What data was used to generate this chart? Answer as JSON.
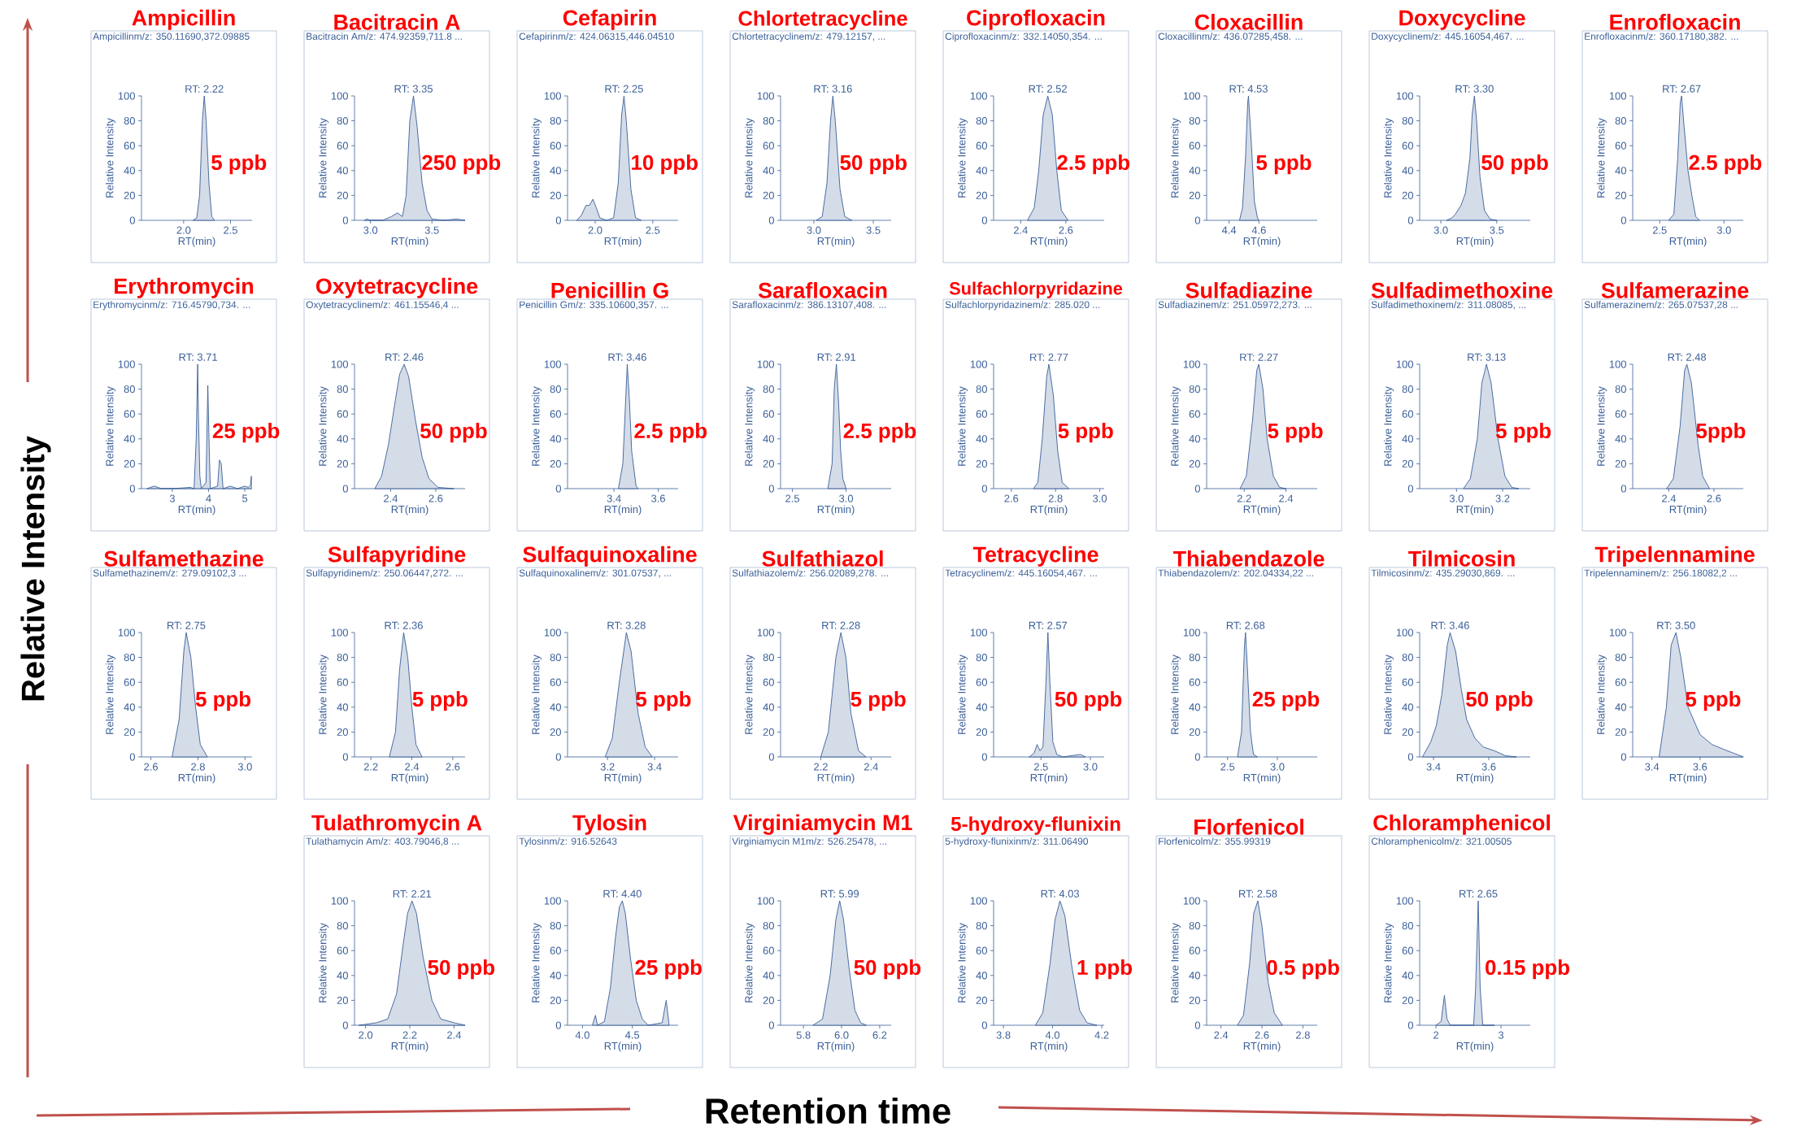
{
  "chart_data": [
    {
      "type": "area",
      "title": "Ampicillin",
      "subtitle": "Ampicillinm/z: 350.11690,372.09885",
      "xlabel": "RT(min)",
      "ylabel": "Relative Intensity",
      "color": "#3a5f98",
      "xlim": [
        1.55,
        2.73
      ],
      "xticks": [
        {
          "value": 2.0,
          "label": "2.0"
        },
        2.5
      ],
      "ylim": [
        0,
        100
      ],
      "yticks": [
        0,
        20,
        40,
        60,
        80,
        100
      ],
      "x": [
        2.1,
        2.14,
        2.17,
        2.2,
        2.22,
        2.24,
        2.27,
        2.3,
        2.33
      ],
      "values": [
        0,
        2,
        20,
        80,
        100,
        80,
        30,
        3,
        0
      ],
      "annotations": [
        {
          "text": "RT: 2.22",
          "x": 2.22,
          "y": 100
        },
        "5 ppb"
      ]
    },
    {
      "type": "area",
      "title": "Bacitracin A",
      "subtitle": "Bacitracin Am/z: 474.92359,711.8 ...",
      "xlabel": "RT(min)",
      "ylabel": "Relative Intensity",
      "color": "#3a5f98",
      "xlim": [
        2.87,
        3.77
      ],
      "xticks": [
        {
          "value": 3.0,
          "label": "3.0"
        },
        3.5
      ],
      "ylim": [
        0,
        100
      ],
      "yticks": [
        0,
        20,
        40,
        60,
        80,
        100
      ],
      "x": [
        2.95,
        2.97,
        3.0,
        3.1,
        3.17,
        3.22,
        3.26,
        3.29,
        3.32,
        3.35,
        3.38,
        3.42,
        3.46,
        3.5,
        3.6,
        3.7,
        3.77
      ],
      "values": [
        0,
        1,
        0,
        0,
        3,
        6,
        3,
        20,
        80,
        100,
        75,
        30,
        8,
        1,
        0,
        1,
        0
      ],
      "annotations": [
        {
          "text": "RT: 3.35",
          "x": 3.35,
          "y": 100
        },
        "250 ppb"
      ]
    },
    {
      "type": "area",
      "title": "Cefapirin",
      "subtitle": "Cefapirinm/z: 424.06315,446.04510",
      "xlabel": "RT(min)",
      "ylabel": "Relative Intensity",
      "color": "#3a5f98",
      "xlim": [
        1.76,
        2.72
      ],
      "xticks": [
        {
          "value": 2.0,
          "label": "2.0"
        },
        2.5
      ],
      "ylim": [
        0,
        100
      ],
      "yticks": [
        0,
        20,
        40,
        60,
        80,
        100
      ],
      "x": [
        1.84,
        1.88,
        1.92,
        1.95,
        1.98,
        2.01,
        2.04,
        2.1,
        2.16,
        2.2,
        2.23,
        2.25,
        2.27,
        2.31,
        2.35,
        2.4
      ],
      "values": [
        0,
        4,
        12,
        12,
        17,
        10,
        2,
        0,
        2,
        30,
        85,
        100,
        80,
        25,
        2,
        0
      ],
      "annotations": [
        {
          "text": "RT: 2.25",
          "x": 2.25,
          "y": 100
        },
        "10 ppb"
      ]
    },
    {
      "type": "area",
      "title": "Chlortetracycline",
      "subtitle": "Chlortetracyclinem/z: 479.12157, ...",
      "xlabel": "RT(min)",
      "ylabel": "Relative Intensity",
      "color": "#3a5f98",
      "xlim": [
        2.72,
        3.65
      ],
      "xticks": [
        {
          "value": 3.0,
          "label": "3.0"
        },
        3.5
      ],
      "ylim": [
        0,
        100
      ],
      "yticks": [
        0,
        20,
        40,
        60,
        80,
        100
      ],
      "x": [
        3.02,
        3.07,
        3.11,
        3.14,
        3.16,
        3.18,
        3.22,
        3.26,
        3.32
      ],
      "values": [
        0,
        3,
        30,
        80,
        100,
        80,
        25,
        3,
        0
      ],
      "annotations": [
        {
          "text": "RT: 3.16",
          "x": 3.16,
          "y": 100
        },
        "50 ppb"
      ]
    },
    {
      "type": "area",
      "title": "Ciprofloxacin",
      "subtitle": "Ciprofloxacinm/z: 332.14050,354. ...",
      "xlabel": "RT(min)",
      "ylabel": "Relative Intensity",
      "color": "#3a5f98",
      "xlim": [
        2.28,
        2.77
      ],
      "xticks": [
        2.4,
        2.6
      ],
      "ylim": [
        0,
        100
      ],
      "yticks": [
        0,
        20,
        40,
        60,
        80,
        100
      ],
      "x": [
        2.43,
        2.46,
        2.48,
        2.5,
        2.52,
        2.54,
        2.56,
        2.58,
        2.61
      ],
      "values": [
        0,
        10,
        40,
        85,
        100,
        85,
        40,
        8,
        0
      ],
      "annotations": [
        {
          "text": "RT: 2.52",
          "x": 2.52,
          "y": 100
        },
        "2.5 ppb"
      ]
    },
    {
      "type": "area",
      "title": "Cloxacillin",
      "subtitle": "Cloxacillinm/z: 436.07285,458. ...",
      "xlabel": "RT(min)",
      "ylabel": "Relative Intensity",
      "color": "#3a5f98",
      "xlim": [
        4.25,
        4.99
      ],
      "xticks": [
        4.4,
        4.6
      ],
      "ylim": [
        0,
        100
      ],
      "yticks": [
        0,
        20,
        40,
        60,
        80,
        100
      ],
      "x": [
        4.47,
        4.49,
        4.51,
        4.525,
        4.53,
        4.55,
        4.57,
        4.59,
        4.6
      ],
      "values": [
        0,
        10,
        50,
        95,
        100,
        60,
        15,
        2,
        0
      ],
      "annotations": [
        {
          "text": "RT: 4.53",
          "x": 4.53,
          "y": 100
        },
        "5 ppb"
      ]
    },
    {
      "type": "area",
      "title": "Doxycycline",
      "subtitle": "Doxycyclinem/z: 445.16054,467. ...",
      "xlabel": "RT(min)",
      "ylabel": "Relative Intensity",
      "color": "#3a5f98",
      "xlim": [
        2.81,
        3.8
      ],
      "xticks": [
        {
          "value": 3.0,
          "label": "3.0"
        },
        3.5
      ],
      "ylim": [
        0,
        100
      ],
      "yticks": [
        0,
        20,
        40,
        60,
        80,
        100
      ],
      "x": [
        3.05,
        3.1,
        3.13,
        3.18,
        3.22,
        3.26,
        3.28,
        3.3,
        3.32,
        3.35,
        3.39,
        3.44,
        3.5
      ],
      "values": [
        0,
        2,
        5,
        12,
        22,
        50,
        85,
        100,
        80,
        35,
        8,
        1,
        0
      ],
      "annotations": [
        {
          "text": "RT: 3.30",
          "x": 3.3,
          "y": 100
        },
        "50 ppb"
      ]
    },
    {
      "type": "area",
      "title": "Enrofloxacin",
      "subtitle": "Enrofloxacinm/z: 360.17180,382. ...",
      "xlabel": "RT(min)",
      "ylabel": "Relative Intensity",
      "color": "#3a5f98",
      "xlim": [
        2.29,
        3.15
      ],
      "xticks": [
        2.5,
        {
          "value": 3.0,
          "label": "3.0"
        }
      ],
      "ylim": [
        0,
        100
      ],
      "yticks": [
        0,
        20,
        40,
        60,
        80,
        100
      ],
      "x": [
        2.57,
        2.61,
        2.64,
        2.66,
        2.67,
        2.69,
        2.72,
        2.75,
        2.78,
        2.81
      ],
      "values": [
        0,
        5,
        50,
        95,
        100,
        75,
        40,
        20,
        3,
        0
      ],
      "annotations": [
        {
          "text": "RT: 2.67",
          "x": 2.67,
          "y": 100
        },
        "2.5 ppb"
      ]
    },
    {
      "type": "area",
      "title": "Erythromycin",
      "subtitle": "Erythromycinm/z: 716.45790,734. ...",
      "xlabel": "RT(min)",
      "ylabel": "Relative Intensity",
      "color": "#3a5f98",
      "xlim": [
        2.15,
        5.2
      ],
      "xticks": [
        3,
        4,
        5
      ],
      "ylim": [
        0,
        100
      ],
      "yticks": [
        0,
        20,
        40,
        60,
        80,
        100
      ],
      "x": [
        2.3,
        2.5,
        2.7,
        3.0,
        3.5,
        3.6,
        3.66,
        3.7,
        3.72,
        3.76,
        3.8,
        3.93,
        3.98,
        4.02,
        4.05,
        4.25,
        4.3,
        4.35,
        4.4,
        4.6,
        4.8,
        5.0,
        5.1,
        5.16,
        5.18
      ],
      "values": [
        0,
        2,
        0,
        0,
        1,
        0,
        40,
        100,
        60,
        10,
        0,
        5,
        83,
        30,
        0,
        2,
        23,
        20,
        0,
        2,
        0,
        2,
        1,
        3,
        10
      ],
      "annotations": [
        {
          "text": "RT: 3.71",
          "x": 3.71,
          "y": 100
        },
        "25 ppb"
      ]
    },
    {
      "type": "area",
      "title": "Oxytetracycline",
      "subtitle": "Oxytetracyclinem/z: 461.15546,4 ...",
      "xlabel": "RT(min)",
      "ylabel": "Relative Intensity",
      "color": "#3a5f98",
      "xlim": [
        2.24,
        2.73
      ],
      "xticks": [
        2.4,
        2.6
      ],
      "ylim": [
        0,
        100
      ],
      "yticks": [
        0,
        20,
        40,
        60,
        80,
        100
      ],
      "x": [
        2.33,
        2.36,
        2.39,
        2.42,
        2.44,
        2.46,
        2.48,
        2.51,
        2.54,
        2.57,
        2.61,
        2.68
      ],
      "values": [
        0,
        10,
        35,
        70,
        92,
        100,
        90,
        55,
        25,
        8,
        1,
        0
      ],
      "annotations": [
        {
          "text": "RT: 2.46",
          "x": 2.46,
          "y": 100
        },
        "50 ppb"
      ]
    },
    {
      "type": "area",
      "title": "Penicillin G",
      "subtitle": "Penicillin Gm/z: 335.10600,357. ...",
      "xlabel": "RT(min)",
      "ylabel": "Relative Intensity",
      "color": "#3a5f98",
      "xlim": [
        3.19,
        3.69
      ],
      "xticks": [
        3.4,
        3.6
      ],
      "ylim": [
        0,
        100
      ],
      "yticks": [
        0,
        20,
        40,
        60,
        80,
        100
      ],
      "x": [
        3.42,
        3.44,
        3.45,
        3.46,
        3.47,
        3.48,
        3.5,
        3.51
      ],
      "values": [
        0,
        20,
        60,
        100,
        70,
        30,
        2,
        0
      ],
      "annotations": [
        {
          "text": "RT: 3.46",
          "x": 3.46,
          "y": 100
        },
        "2.5 ppb"
      ]
    },
    {
      "type": "area",
      "title": "Sarafloxacin",
      "subtitle": "Sarafloxacinm/z: 386.13107,408. ...",
      "xlabel": "RT(min)",
      "ylabel": "Relative Intensity",
      "color": "#3a5f98",
      "xlim": [
        2.39,
        3.42
      ],
      "xticks": [
        2.5,
        {
          "value": 3.0,
          "label": "3.0"
        }
      ],
      "ylim": [
        0,
        100
      ],
      "yticks": [
        0,
        20,
        40,
        60,
        80,
        100
      ],
      "x": [
        2.83,
        2.87,
        2.89,
        2.91,
        2.93,
        2.95,
        2.97,
        3.0
      ],
      "values": [
        0,
        20,
        80,
        100,
        70,
        30,
        8,
        0
      ],
      "annotations": [
        {
          "text": "RT: 2.91",
          "x": 2.91,
          "y": 100
        },
        "2.5 ppb"
      ]
    },
    {
      "type": "area",
      "title": "Sulfachlorpyridazine",
      "subtitle": "Sulfachlorpyridazinem/z: 285.020 ...",
      "xlabel": "RT(min)",
      "ylabel": "Relative Intensity",
      "color": "#3a5f98",
      "xlim": [
        2.52,
        3.02
      ],
      "xticks": [
        2.6,
        2.8,
        {
          "value": 3.0,
          "label": "3.0"
        }
      ],
      "ylim": [
        0,
        100
      ],
      "yticks": [
        0,
        20,
        40,
        60,
        80,
        100
      ],
      "x": [
        2.7,
        2.72,
        2.74,
        2.76,
        2.77,
        2.79,
        2.81,
        2.83,
        2.86
      ],
      "values": [
        0,
        5,
        40,
        90,
        100,
        75,
        30,
        5,
        0
      ],
      "annotations": [
        {
          "text": "RT: 2.77",
          "x": 2.77,
          "y": 100
        },
        "5 ppb"
      ]
    },
    {
      "type": "area",
      "title": "Sulfadiazine",
      "subtitle": "Sulfadiazinem/z: 251.05972,273. ...",
      "xlabel": "RT(min)",
      "ylabel": "Relative Intensity",
      "color": "#3a5f98",
      "xlim": [
        2.02,
        2.55
      ],
      "xticks": [
        2.2,
        2.4
      ],
      "ylim": [
        0,
        100
      ],
      "yticks": [
        0,
        20,
        40,
        60,
        80,
        100
      ],
      "x": [
        2.18,
        2.21,
        2.24,
        2.26,
        2.27,
        2.29,
        2.31,
        2.34,
        2.37,
        2.4
      ],
      "values": [
        0,
        10,
        55,
        95,
        100,
        80,
        40,
        10,
        1,
        0
      ],
      "annotations": [
        {
          "text": "RT: 2.27",
          "x": 2.27,
          "y": 100
        },
        "5 ppb"
      ]
    },
    {
      "type": "area",
      "title": "Sulfadimethoxine",
      "subtitle": "Sulfadimethoxinem/z: 311.08085, ...",
      "xlabel": "RT(min)",
      "ylabel": "Relative Intensity",
      "color": "#3a5f98",
      "xlim": [
        2.84,
        3.32
      ],
      "xticks": [
        {
          "value": 3.0,
          "label": "3.0"
        },
        3.2
      ],
      "ylim": [
        0,
        100
      ],
      "yticks": [
        0,
        20,
        40,
        60,
        80,
        100
      ],
      "x": [
        3.03,
        3.06,
        3.09,
        3.11,
        3.13,
        3.15,
        3.18,
        3.21,
        3.24,
        3.27
      ],
      "values": [
        0,
        8,
        40,
        85,
        100,
        85,
        40,
        10,
        1,
        0
      ],
      "annotations": [
        {
          "text": "RT: 3.13",
          "x": 3.13,
          "y": 100
        },
        "5 ppb"
      ]
    },
    {
      "type": "area",
      "title": "Sulfamerazine",
      "subtitle": "Sulfamerazinem/z: 265.07537,28 ...",
      "xlabel": "RT(min)",
      "ylabel": "Relative Intensity",
      "color": "#3a5f98",
      "xlim": [
        2.24,
        2.73
      ],
      "xticks": [
        2.4,
        2.6
      ],
      "ylim": [
        0,
        100
      ],
      "yticks": [
        0,
        20,
        40,
        60,
        80,
        100
      ],
      "x": [
        2.39,
        2.42,
        2.45,
        2.47,
        2.48,
        2.5,
        2.53,
        2.55,
        2.58
      ],
      "values": [
        0,
        8,
        50,
        95,
        100,
        85,
        35,
        10,
        0
      ],
      "annotations": [
        {
          "text": "RT: 2.48",
          "x": 2.48,
          "y": 100
        },
        "5ppb"
      ]
    },
    {
      "type": "area",
      "title": "Sulfamethazine",
      "subtitle": "Sulfamethazinem/z: 279.09102,3 ...",
      "xlabel": "RT(min)",
      "ylabel": "Relative Intensity",
      "color": "#3a5f98",
      "xlim": [
        2.56,
        3.03
      ],
      "xticks": [
        2.6,
        2.8,
        {
          "value": 3.0,
          "label": "3.0"
        }
      ],
      "ylim": [
        0,
        100
      ],
      "yticks": [
        0,
        20,
        40,
        60,
        80,
        100
      ],
      "x": [
        2.69,
        2.72,
        2.74,
        2.75,
        2.77,
        2.79,
        2.81,
        2.84
      ],
      "values": [
        0,
        30,
        85,
        100,
        80,
        40,
        10,
        0
      ],
      "annotations": [
        {
          "text": "RT: 2.75",
          "x": 2.75,
          "y": 100
        },
        "5 ppb"
      ]
    },
    {
      "type": "area",
      "title": "Sulfapyridine",
      "subtitle": "Sulfapyridinem/z: 250.06447,272. ...",
      "xlabel": "RT(min)",
      "ylabel": "Relative Intensity",
      "color": "#3a5f98",
      "xlim": [
        2.12,
        2.66
      ],
      "xticks": [
        2.2,
        2.4,
        2.6
      ],
      "ylim": [
        0,
        100
      ],
      "yticks": [
        0,
        20,
        40,
        60,
        80,
        100
      ],
      "x": [
        2.29,
        2.32,
        2.34,
        2.36,
        2.38,
        2.4,
        2.42,
        2.45
      ],
      "values": [
        0,
        20,
        70,
        100,
        80,
        40,
        10,
        0
      ],
      "annotations": [
        {
          "text": "RT: 2.36",
          "x": 2.36,
          "y": 100
        },
        "5 ppb"
      ]
    },
    {
      "type": "area",
      "title": "Sulfaquinoxaline",
      "subtitle": "Sulfaquinoxalinem/z: 301.07537, ...",
      "xlabel": "RT(min)",
      "ylabel": "Relative Intensity",
      "color": "#3a5f98",
      "xlim": [
        3.03,
        3.5
      ],
      "xticks": [
        3.2,
        3.4
      ],
      "ylim": [
        0,
        100
      ],
      "yticks": [
        0,
        20,
        40,
        60,
        80,
        100
      ],
      "x": [
        3.19,
        3.22,
        3.25,
        3.28,
        3.3,
        3.33,
        3.36,
        3.39
      ],
      "values": [
        0,
        15,
        60,
        100,
        85,
        35,
        8,
        0
      ],
      "annotations": [
        {
          "text": "RT: 3.28",
          "x": 3.28,
          "y": 100
        },
        "5 ppb"
      ]
    },
    {
      "type": "area",
      "title": "Sulfathiazol",
      "subtitle": "Sulfathiazolem/z: 256.02089,278. ...",
      "xlabel": "RT(min)",
      "ylabel": "Relative Intensity",
      "color": "#3a5f98",
      "xlim": [
        2.04,
        2.48
      ],
      "xticks": [
        2.2,
        2.4
      ],
      "ylim": [
        0,
        100
      ],
      "yticks": [
        0,
        20,
        40,
        60,
        80,
        100
      ],
      "x": [
        2.2,
        2.23,
        2.26,
        2.28,
        2.3,
        2.32,
        2.35,
        2.38
      ],
      "values": [
        0,
        20,
        80,
        100,
        80,
        35,
        5,
        0
      ],
      "annotations": [
        {
          "text": "RT: 2.28",
          "x": 2.28,
          "y": 100
        },
        "5 ppb"
      ]
    },
    {
      "type": "area",
      "title": "Tetracycline",
      "subtitle": "Tetracyclinem/z: 445.16054,467. ...",
      "xlabel": "RT(min)",
      "ylabel": "Relative Intensity",
      "color": "#3a5f98",
      "xlim": [
        2.02,
        3.14
      ],
      "xticks": [
        2.5,
        {
          "value": 3.0,
          "label": "3.0"
        }
      ],
      "ylim": [
        0,
        100
      ],
      "yticks": [
        0,
        20,
        40,
        60,
        80,
        100
      ],
      "x": [
        2.38,
        2.43,
        2.46,
        2.49,
        2.52,
        2.55,
        2.57,
        2.59,
        2.62,
        2.66,
        2.72,
        2.9,
        2.95
      ],
      "values": [
        0,
        3,
        10,
        5,
        8,
        60,
        100,
        60,
        12,
        2,
        0,
        2,
        0
      ],
      "annotations": [
        {
          "text": "RT: 2.57",
          "x": 2.57,
          "y": 100
        },
        "50 ppb"
      ]
    },
    {
      "type": "area",
      "title": "Thiabendazole",
      "subtitle": "Thiabendazolem/z: 202.04334,22 ...",
      "xlabel": "RT(min)",
      "ylabel": "Relative Intensity",
      "color": "#3a5f98",
      "xlim": [
        2.29,
        3.4
      ],
      "xticks": [
        2.5,
        {
          "value": 3.0,
          "label": "3.0"
        }
      ],
      "ylim": [
        0,
        100
      ],
      "yticks": [
        0,
        20,
        40,
        60,
        80,
        100
      ],
      "x": [
        2.6,
        2.64,
        2.67,
        2.68,
        2.7,
        2.73,
        2.76,
        2.8
      ],
      "values": [
        0,
        20,
        90,
        100,
        70,
        20,
        2,
        0
      ],
      "annotations": [
        {
          "text": "RT: 2.68",
          "x": 2.68,
          "y": 100
        },
        "25 ppb"
      ]
    },
    {
      "type": "area",
      "title": "Tilmicosin",
      "subtitle": "Tilmicosinm/z: 435.29030,869. ...",
      "xlabel": "RT(min)",
      "ylabel": "Relative Intensity",
      "color": "#3a5f98",
      "xlim": [
        3.35,
        3.75
      ],
      "xticks": [
        3.4,
        3.6
      ],
      "ylim": [
        0,
        100
      ],
      "yticks": [
        0,
        20,
        40,
        60,
        80,
        100
      ],
      "x": [
        3.36,
        3.39,
        3.41,
        3.43,
        3.45,
        3.46,
        3.48,
        3.5,
        3.52,
        3.55,
        3.58,
        3.62,
        3.66,
        3.7
      ],
      "values": [
        0,
        12,
        25,
        50,
        90,
        100,
        85,
        55,
        30,
        15,
        8,
        5,
        1,
        0
      ],
      "annotations": [
        {
          "text": "RT: 3.46",
          "x": 3.46,
          "y": 100
        },
        "50 ppb"
      ]
    },
    {
      "type": "area",
      "title": "Tripelennamine",
      "subtitle": "Tripelennaminem/z: 256.18082,2 ...",
      "xlabel": "RT(min)",
      "ylabel": "Relative Intensity",
      "color": "#3a5f98",
      "xlim": [
        3.32,
        3.78
      ],
      "xticks": [
        3.4,
        3.6
      ],
      "ylim": [
        0,
        100
      ],
      "yticks": [
        0,
        20,
        40,
        60,
        80,
        100
      ],
      "x": [
        3.43,
        3.46,
        3.48,
        3.5,
        3.52,
        3.55,
        3.6,
        3.65,
        3.7,
        3.74,
        3.78
      ],
      "values": [
        0,
        40,
        90,
        100,
        80,
        40,
        18,
        10,
        6,
        3,
        0
      ],
      "annotations": [
        {
          "text": "RT: 3.50",
          "x": 3.5,
          "y": 100
        },
        "5 ppb"
      ]
    },
    {
      "type": "area",
      "title": "Tulathromycin A",
      "subtitle": "Tulathamycin Am/z: 403.79046,8 ...",
      "xlabel": "RT(min)",
      "ylabel": "Relative Intensity",
      "color": "#3a5f98",
      "xlim": [
        1.95,
        2.45
      ],
      "xticks": [
        {
          "value": 2.0,
          "label": "2.0"
        },
        2.2,
        2.4
      ],
      "ylim": [
        0,
        100
      ],
      "yticks": [
        0,
        20,
        40,
        60,
        80,
        100
      ],
      "x": [
        1.97,
        2.05,
        2.1,
        2.14,
        2.17,
        2.19,
        2.21,
        2.23,
        2.26,
        2.3,
        2.34,
        2.4,
        2.45
      ],
      "values": [
        0,
        2,
        5,
        25,
        65,
        90,
        100,
        90,
        55,
        20,
        5,
        2,
        0
      ],
      "annotations": [
        {
          "text": "RT: 2.21",
          "x": 2.21,
          "y": 100
        },
        "50 ppb"
      ]
    },
    {
      "type": "area",
      "title": "Tylosin",
      "subtitle": "Tylosinm/z: 916.52643",
      "xlabel": "RT(min)",
      "ylabel": "Relative Intensity",
      "color": "#3a5f98",
      "xlim": [
        3.85,
        4.96
      ],
      "xticks": [
        {
          "value": 4.0,
          "label": "4.0"
        },
        4.5
      ],
      "ylim": [
        0,
        100
      ],
      "yticks": [
        0,
        20,
        40,
        60,
        80,
        100
      ],
      "x": [
        4.1,
        4.13,
        4.15,
        4.22,
        4.28,
        4.33,
        4.37,
        4.4,
        4.43,
        4.48,
        4.54,
        4.6,
        4.66,
        4.8,
        4.84,
        4.87
      ],
      "values": [
        0,
        8,
        0,
        3,
        30,
        70,
        95,
        100,
        90,
        55,
        20,
        5,
        0,
        2,
        20,
        0
      ],
      "annotations": [
        {
          "text": "RT: 4.40",
          "x": 4.4,
          "y": 100
        },
        "25 ppb"
      ]
    },
    {
      "type": "area",
      "title": "Virginiamycin M1",
      "subtitle": "Virginiamycin M1m/z: 526.25478, ...",
      "xlabel": "RT(min)",
      "ylabel": "Relative Intensity",
      "color": "#3a5f98",
      "xlim": [
        5.68,
        6.26
      ],
      "xticks": [
        5.8,
        {
          "value": 6.0,
          "label": "6.0"
        },
        6.2
      ],
      "ylim": [
        0,
        100
      ],
      "yticks": [
        0,
        20,
        40,
        60,
        80,
        100
      ],
      "x": [
        5.85,
        5.9,
        5.94,
        5.97,
        5.99,
        6.01,
        6.04,
        6.07,
        6.1,
        6.13
      ],
      "values": [
        0,
        5,
        40,
        85,
        100,
        85,
        45,
        12,
        2,
        0
      ],
      "annotations": [
        {
          "text": "RT: 5.99",
          "x": 5.99,
          "y": 100
        },
        "50 ppb"
      ]
    },
    {
      "type": "area",
      "title": "5-hydroxy-flunixin",
      "subtitle": "5-hydroxy-flunixinm/z: 311.06490",
      "xlabel": "RT(min)",
      "ylabel": "Relative Intensity",
      "color": "#3a5f98",
      "xlim": [
        3.76,
        4.21
      ],
      "xticks": [
        3.8,
        {
          "value": 4.0,
          "label": "4.0"
        },
        4.2
      ],
      "ylim": [
        0,
        100
      ],
      "yticks": [
        0,
        20,
        40,
        60,
        80,
        100
      ],
      "x": [
        3.93,
        3.96,
        3.99,
        4.01,
        4.03,
        4.05,
        4.08,
        4.11,
        4.14,
        4.18
      ],
      "values": [
        0,
        10,
        50,
        85,
        100,
        88,
        45,
        12,
        2,
        0
      ],
      "annotations": [
        {
          "text": "RT: 4.03",
          "x": 4.03,
          "y": 100
        },
        "1 ppb"
      ]
    },
    {
      "type": "area",
      "title": "Florfenicol",
      "subtitle": "Florfenicolm/z: 355.99319",
      "xlabel": "RT(min)",
      "ylabel": "Relative Intensity",
      "color": "#3a5f98",
      "xlim": [
        2.33,
        2.87
      ],
      "xticks": [
        2.4,
        2.6,
        2.8
      ],
      "ylim": [
        0,
        100
      ],
      "yticks": [
        0,
        20,
        40,
        60,
        80,
        100
      ],
      "x": [
        2.48,
        2.51,
        2.54,
        2.56,
        2.58,
        2.6,
        2.63,
        2.66,
        2.7
      ],
      "values": [
        0,
        8,
        50,
        90,
        100,
        80,
        35,
        10,
        0
      ],
      "annotations": [
        {
          "text": "RT: 2.58",
          "x": 2.58,
          "y": 100
        },
        "0.5 ppb"
      ]
    },
    {
      "type": "area",
      "title": "Chloramphenicol",
      "subtitle": "Chloramphenicolm/z: 321.00505",
      "xlabel": "RT(min)",
      "ylabel": "Relative Intensity",
      "color": "#3a5f98",
      "xlim": [
        1.75,
        3.45
      ],
      "xticks": [
        2,
        3
      ],
      "ylim": [
        0,
        100
      ],
      "yticks": [
        0,
        20,
        40,
        60,
        80,
        100
      ],
      "x": [
        2.0,
        2.08,
        2.13,
        2.17,
        2.22,
        2.4,
        2.58,
        2.61,
        2.65,
        2.68,
        2.72,
        2.9
      ],
      "values": [
        0,
        3,
        24,
        5,
        0,
        0,
        0,
        30,
        100,
        30,
        0,
        0
      ],
      "annotations": [
        {
          "text": "RT: 2.65",
          "x": 2.65,
          "y": 100
        },
        "0.15 ppb"
      ]
    },
    {
      "type": "other",
      "xlabel": "Retention time",
      "ylabel": "Relative Intensity"
    }
  ]
}
